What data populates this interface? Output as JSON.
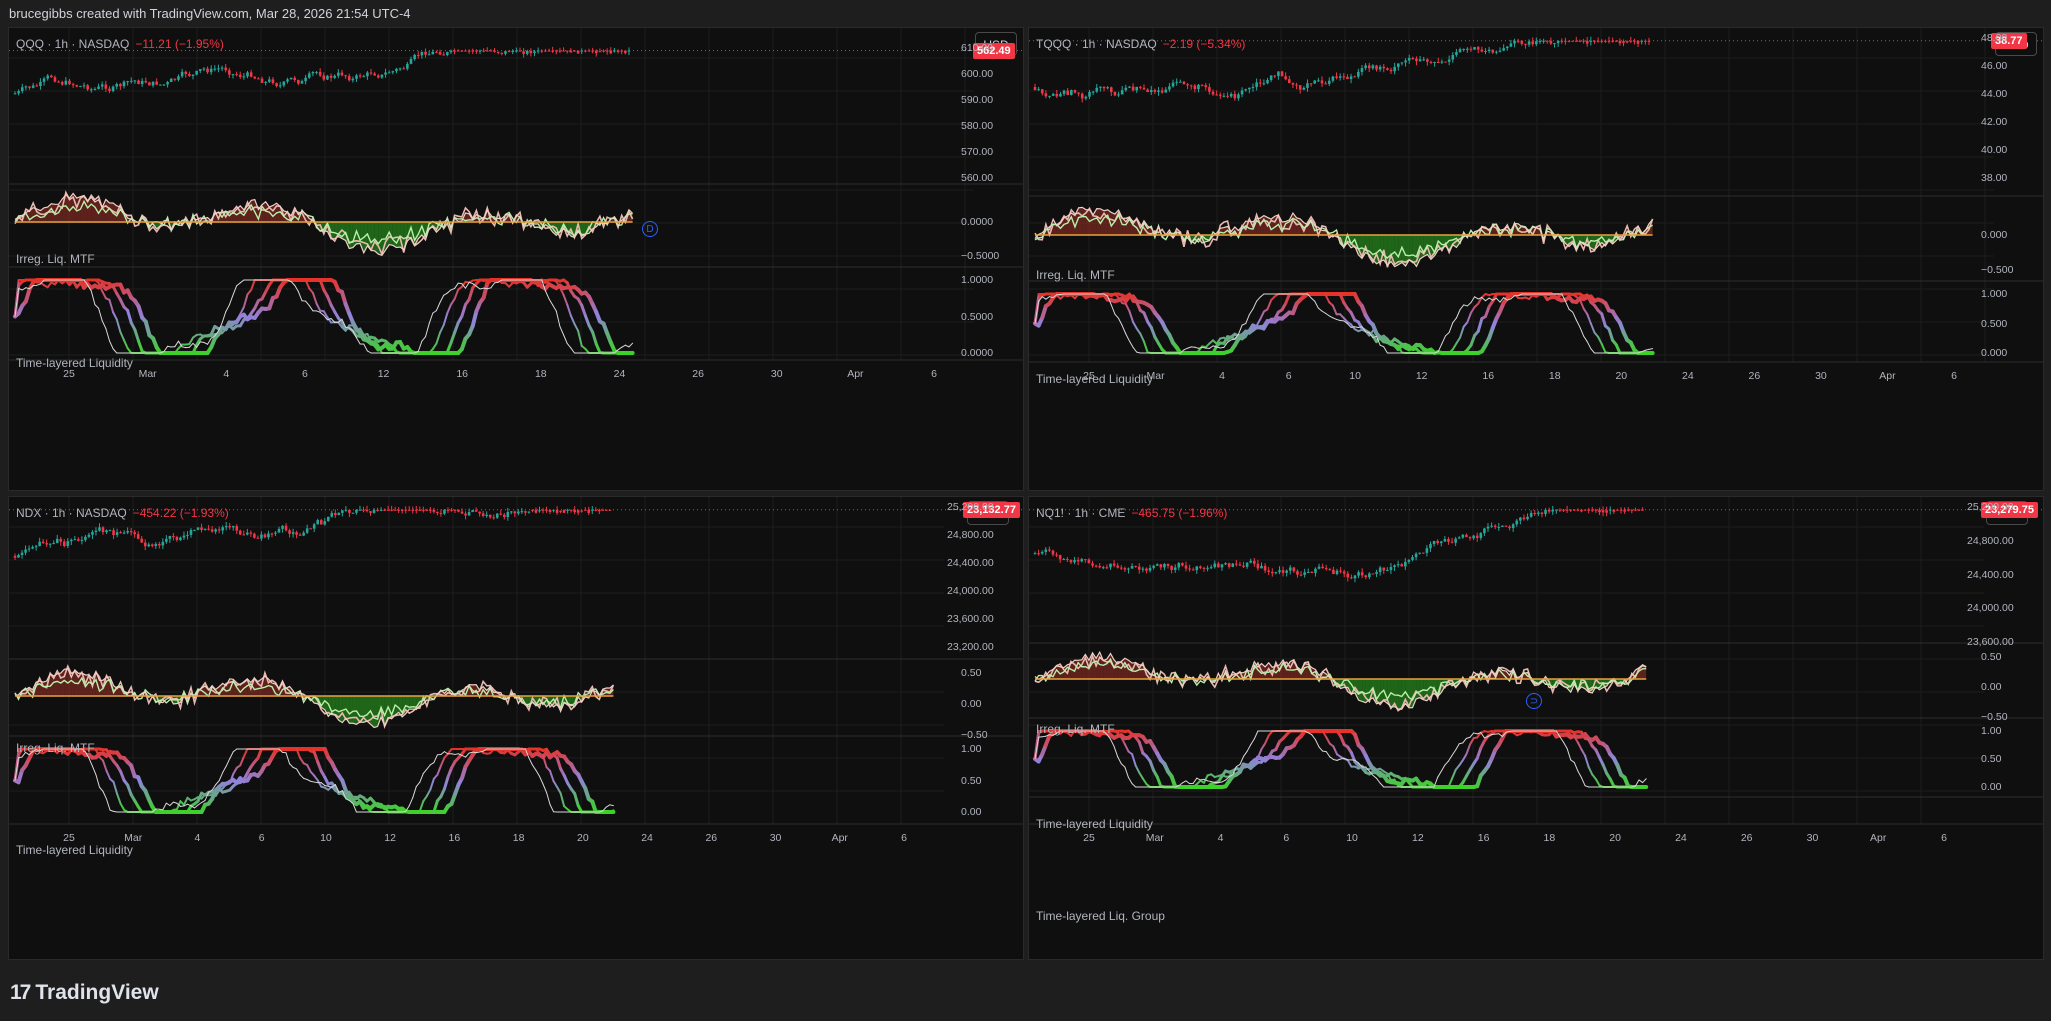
{
  "header": {
    "text": "brucegibbs created with TradingView.com, Mar 28, 2026 21:54 UTC-4"
  },
  "footer": {
    "brand": "TradingView",
    "logo_glyph": "17"
  },
  "colors": {
    "bull": "#26a69a",
    "bear": "#f23645",
    "liq_green": "#2ecc2e",
    "liq_red": "#e0301e",
    "zero_line": "#e8a33d",
    "background": "#0f0f0f"
  },
  "panels": [
    {
      "symbol": "QQQ · 1h · NASDAQ",
      "change": "−11.21 (−1.95%)",
      "currency": "USD",
      "price_axis": [
        "610.00",
        "600.00",
        "590.00",
        "580.00",
        "570.00",
        "560.00"
      ],
      "last_price": "562.49",
      "irreg": {
        "label": "Irreg. Liq. MTF",
        "ticks": [
          "0.0000",
          "−0.5000"
        ]
      },
      "tll": {
        "label": "Time-layered Liquidity",
        "ticks": [
          "1.0000",
          "0.5000",
          "0.0000"
        ]
      },
      "time_axis": [
        "25",
        "Mar",
        "4",
        "6",
        "12",
        "16",
        "18",
        "24",
        "26",
        "30",
        "Apr",
        "6"
      ],
      "marker": "D"
    },
    {
      "symbol": "TQQQ · 1h · NASDAQ",
      "change": "−2.19 (−5.34%)",
      "currency": "USD",
      "price_axis": [
        "48.00",
        "46.00",
        "44.00",
        "42.00",
        "40.00",
        "38.00"
      ],
      "last_price": "38.77",
      "irreg": {
        "label": "Irreg. Liq. MTF",
        "ticks": [
          "0.000",
          "−0.500"
        ]
      },
      "tll": {
        "label": "Time-layered Liquidity",
        "ticks": [
          "1.000",
          "0.500",
          "0.000"
        ]
      },
      "time_axis": [
        "25",
        "Mar",
        "4",
        "6",
        "10",
        "12",
        "16",
        "18",
        "20",
        "24",
        "26",
        "30",
        "Apr",
        "6"
      ]
    },
    {
      "symbol": "NDX · 1h · NASDAQ",
      "change": "−454.22 (−1.93%)",
      "currency": "USD",
      "price_axis": [
        "25,200.00",
        "24,800.00",
        "24,400.00",
        "24,000.00",
        "23,600.00",
        "23,200.00"
      ],
      "last_price": "23,132.77",
      "irreg": {
        "label": "Irreg. Liq. MTF",
        "ticks": [
          "0.50",
          "0.00",
          "−0.50"
        ]
      },
      "tll": {
        "label": "Time-layered Liquidity",
        "ticks": [
          "1.00",
          "0.50",
          "0.00"
        ]
      },
      "time_axis": [
        "25",
        "Mar",
        "4",
        "6",
        "10",
        "12",
        "16",
        "18",
        "20",
        "24",
        "26",
        "30",
        "Apr",
        "6"
      ]
    },
    {
      "symbol": "NQ1! · 1h · CME",
      "change": "−465.75 (−1.96%)",
      "currency": "USD",
      "price_axis": [
        "25,200.00",
        "24,800.00",
        "24,400.00",
        "24,000.00",
        "23,600.00"
      ],
      "last_price": "23,279.75",
      "irreg": {
        "label": "Irreg. Liq. MTF",
        "ticks": [
          "0.50",
          "0.00",
          "−0.50"
        ]
      },
      "tll": {
        "label": "Time-layered Liquidity",
        "ticks": [
          "1.00",
          "0.50",
          "0.00"
        ]
      },
      "group": {
        "label": "Time-layered Liq. Group"
      },
      "time_axis": [
        "25",
        "Mar",
        "4",
        "6",
        "10",
        "12",
        "16",
        "18",
        "20",
        "24",
        "26",
        "30",
        "Apr",
        "6"
      ],
      "marker": "⊃"
    }
  ]
}
